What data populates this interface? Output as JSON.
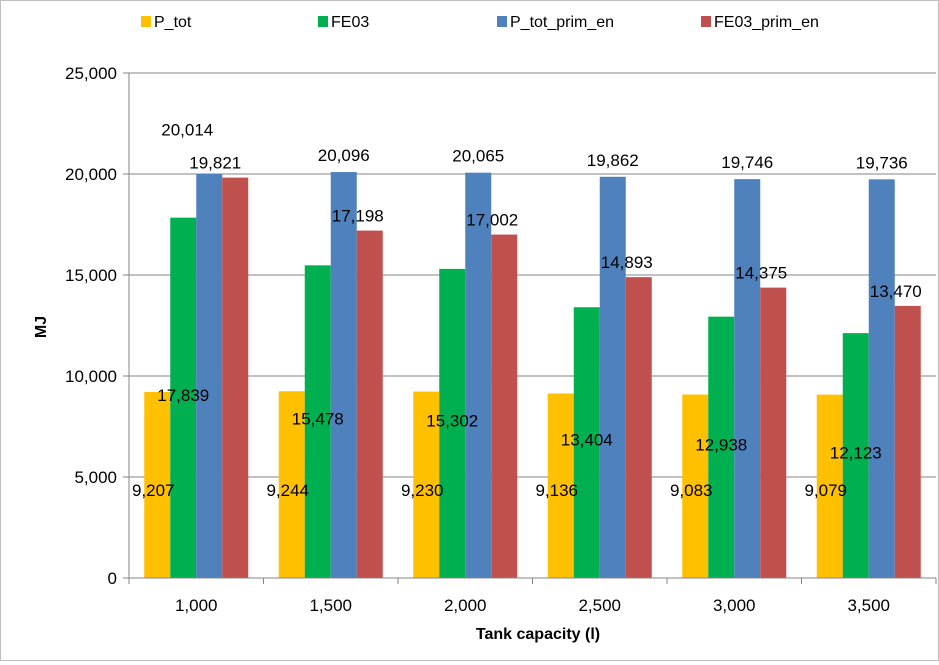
{
  "chart_data": {
    "type": "bar",
    "title": "",
    "xlabel": "Tank capacity (l)",
    "ylabel": "MJ",
    "ylim": [
      0,
      25000
    ],
    "yticks": [
      0,
      5000,
      10000,
      15000,
      20000,
      25000
    ],
    "ytick_labels": [
      "0",
      "5,000",
      "10,000",
      "15,000",
      "20,000",
      "25,000"
    ],
    "grid": true,
    "legend_position": "top",
    "categories": [
      "1,000",
      "1,500",
      "2,000",
      "2,500",
      "3,000",
      "3,500"
    ],
    "series": [
      {
        "name": "P_tot",
        "color": "#FFC000",
        "values": [
          9207,
          9244,
          9230,
          9136,
          9083,
          9079
        ],
        "labels": [
          "9,207",
          "9,244",
          "9,230",
          "9,136",
          "9,083",
          "9,079"
        ]
      },
      {
        "name": "FE03",
        "color": "#00B050",
        "values": [
          17839,
          15478,
          15302,
          13404,
          12938,
          12123
        ],
        "labels": [
          "17,839",
          "15,478",
          "15,302",
          "13,404",
          "12,938",
          "12,123"
        ]
      },
      {
        "name": "P_tot_prim_en",
        "color": "#4F81BD",
        "values": [
          20014,
          20096,
          20065,
          19862,
          19746,
          19736
        ],
        "labels": [
          "20,014",
          "20,096",
          "20,065",
          "19,862",
          "19,746",
          "19,736"
        ]
      },
      {
        "name": "FE03_prim_en",
        "color": "#C0504D",
        "values": [
          19821,
          17198,
          17002,
          14893,
          14375,
          13470
        ],
        "labels": [
          "19,821",
          "17,198",
          "17,002",
          "14,893",
          "14,375",
          "13,470"
        ]
      }
    ]
  }
}
